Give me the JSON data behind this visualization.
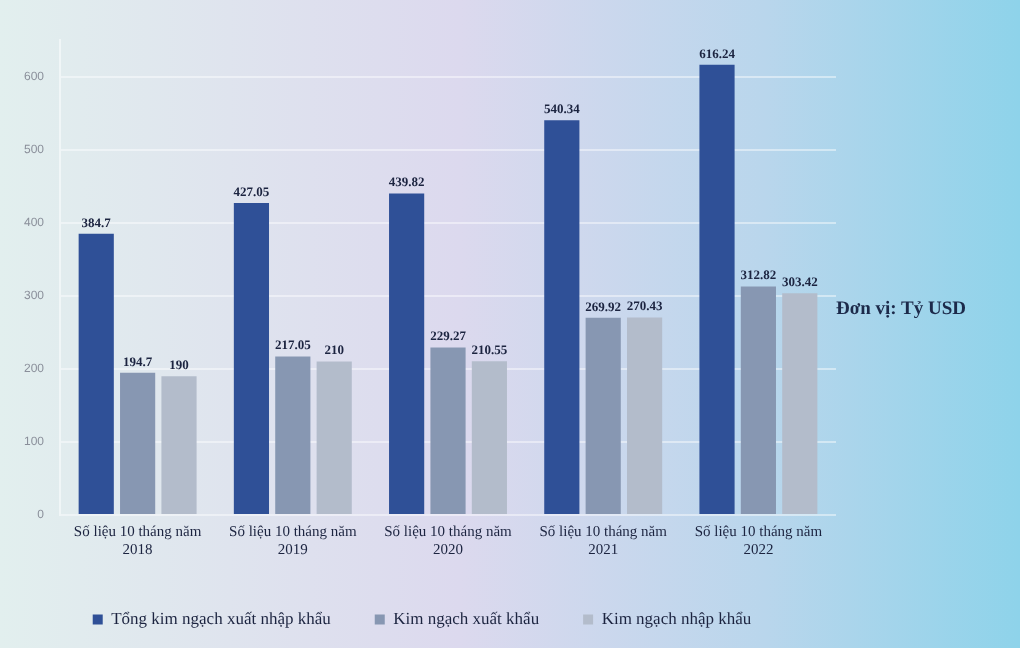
{
  "chart_data": {
    "type": "bar",
    "categories": [
      "Số liệu 10 tháng năm 2018",
      "Số liệu 10 tháng năm 2019",
      "Số liệu 10 tháng năm 2020",
      "Số liệu 10 tháng năm 2021",
      "Số liệu 10 tháng năm 2022"
    ],
    "series": [
      {
        "name": "Tổng kim ngạch xuất nhập khẩu",
        "color": "#2f5097",
        "values": [
          384.7,
          427.05,
          439.82,
          540.34,
          616.24
        ]
      },
      {
        "name": "Kim ngạch xuất khẩu",
        "color": "#8797b2",
        "values": [
          194.7,
          217.05,
          229.27,
          269.92,
          312.82
        ]
      },
      {
        "name": "Kim ngạch nhập khẩu",
        "color": "#b3bccb",
        "values": [
          190,
          210,
          210.55,
          270.43,
          303.42
        ]
      }
    ],
    "ylim": [
      0,
      650
    ],
    "yticks": [
      0,
      100,
      200,
      300,
      400,
      500,
      600
    ],
    "grid": "y",
    "legend": "bottom",
    "data_labels": true,
    "annotations": [
      "Đơn vị: Tỷ USD"
    ]
  }
}
